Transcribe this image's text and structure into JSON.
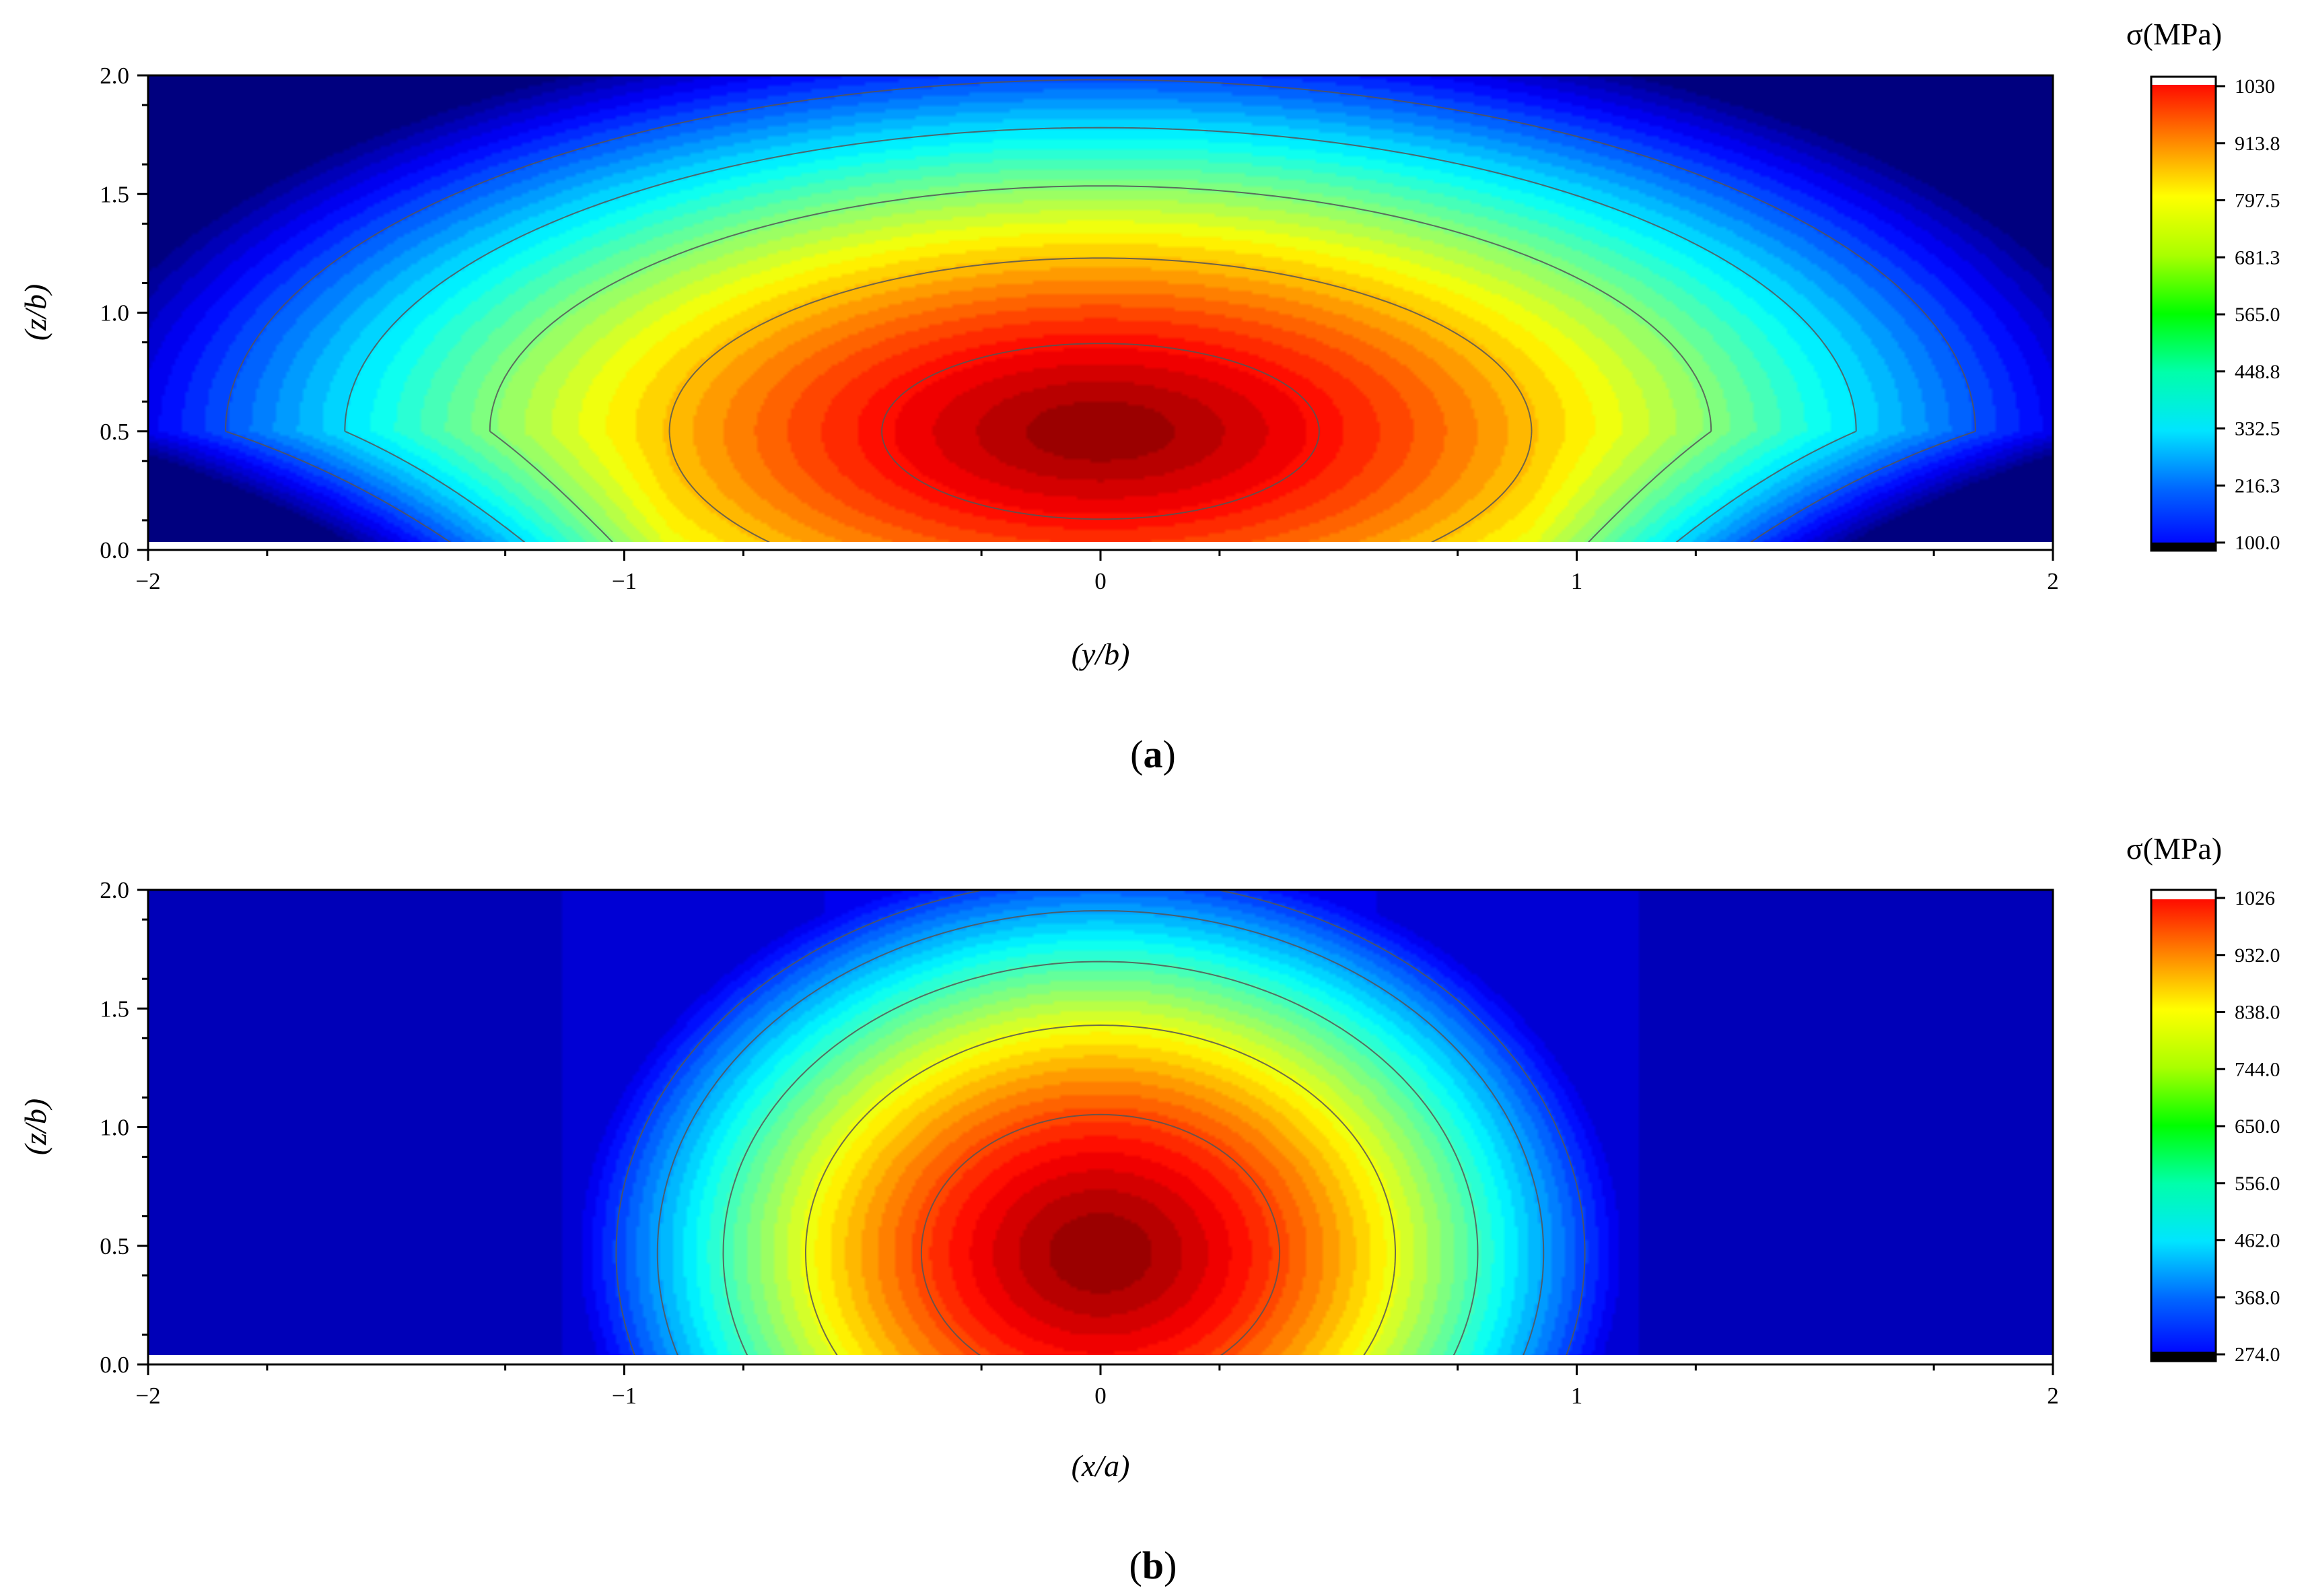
{
  "chart_data": [
    {
      "type": "heatmap",
      "panel_label": "(a)",
      "panel_letter": "a",
      "xlabel": "(y/b)",
      "ylabel": "(z/b)",
      "xlim": [
        -2,
        2
      ],
      "ylim": [
        0,
        2
      ],
      "x_ticks": [
        "−2",
        "−1",
        "0",
        "1",
        "2"
      ],
      "y_ticks": [
        "0.0",
        "0.5",
        "1.0",
        "1.5",
        "2.0"
      ],
      "colorbar_title": "σ(MPa)",
      "colorbar_range": [
        100.0,
        1030
      ],
      "colorbar_ticks": [
        "1030",
        "913.8",
        "797.5",
        "681.3",
        "565.0",
        "448.8",
        "332.5",
        "216.3",
        "100.0"
      ],
      "contour_lines": true,
      "field": {
        "peak_x": 0.0,
        "peak_z": 0.5,
        "peak_value": 1030
      }
    },
    {
      "type": "heatmap",
      "panel_label": "(b)",
      "panel_letter": "b",
      "xlabel": "(x/a)",
      "ylabel": "(z/b)",
      "xlim": [
        -2,
        2
      ],
      "ylim": [
        0,
        2
      ],
      "x_ticks": [
        "−2",
        "−1",
        "0",
        "1",
        "2"
      ],
      "y_ticks": [
        "0.0",
        "0.5",
        "1.0",
        "1.5",
        "2.0"
      ],
      "colorbar_title": "σ(MPa)",
      "colorbar_range": [
        274.0,
        1026
      ],
      "colorbar_ticks": [
        "1026",
        "932.0",
        "838.0",
        "744.0",
        "650.0",
        "556.0",
        "462.0",
        "368.0",
        "274.0"
      ],
      "contour_lines": true,
      "field": {
        "peak_x": 0.0,
        "peak_z": 0.47,
        "peak_value": 1026
      }
    }
  ]
}
